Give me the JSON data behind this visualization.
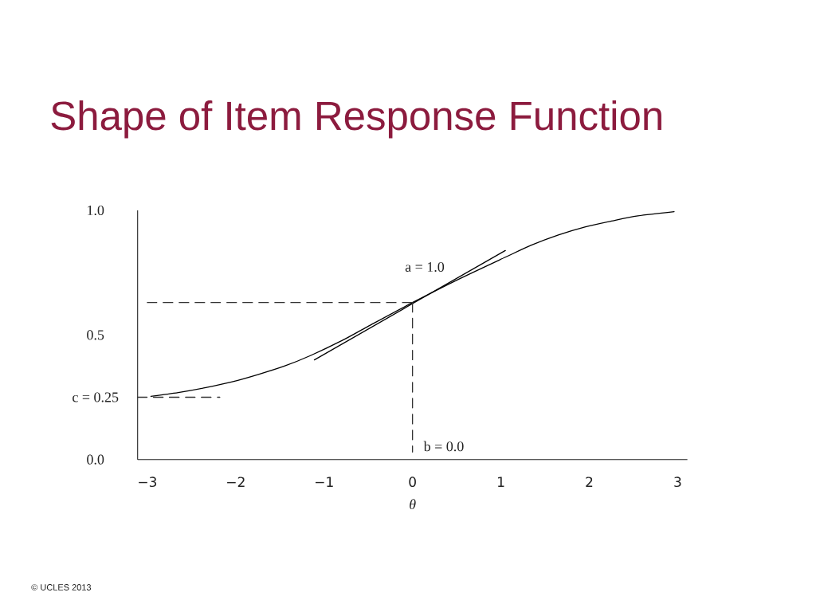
{
  "chart_data": {
    "type": "line",
    "title": "Shape of Item Response Function",
    "xlabel": "θ",
    "xlim": [
      -3.11,
      3.11
    ],
    "ylim": [
      0,
      1.0
    ],
    "xticks": [
      {
        "value": -3,
        "label": "−3"
      },
      {
        "value": -2,
        "label": "−2"
      },
      {
        "value": -1,
        "label": "−1"
      },
      0,
      1,
      2,
      3
    ],
    "yticks": [
      {
        "value": 0,
        "label": "0.0"
      },
      {
        "value": 0.25,
        "label": "c = 0.25"
      },
      {
        "value": 0.5,
        "label": "0.5"
      },
      {
        "value": 1,
        "label": "1.0"
      }
    ],
    "series": [
      {
        "color": "#000000",
        "line_style": "solid",
        "x": [
          -2.96,
          -2.65,
          -2.35,
          -2.05,
          -1.75,
          -1.45,
          -1.15,
          -0.79,
          -0.5,
          0,
          0.5,
          1.05,
          1.35,
          1.65,
          1.95,
          2.25,
          2.55,
          2.96
        ],
        "values": [
          0.254,
          0.269,
          0.288,
          0.311,
          0.341,
          0.375,
          0.418,
          0.479,
          0.535,
          0.63,
          0.72,
          0.812,
          0.861,
          0.901,
          0.933,
          0.957,
          0.978,
          0.995
        ]
      },
      {
        "color": "#000000",
        "line_style": "solid",
        "x": [
          -1.11,
          1.05
        ],
        "values": [
          0.4,
          0.839
        ]
      },
      {
        "color": "#333333",
        "line_style": "dashed",
        "x": [
          -3.0,
          0
        ],
        "values": [
          0.63,
          0.63
        ]
      },
      {
        "color": "#333333",
        "line_style": "dashed",
        "x": [
          0,
          0
        ],
        "values": [
          0.63,
          0.03
        ]
      },
      {
        "color": "#333333",
        "line_style": "dashed",
        "x": [
          -3.11,
          -2.18
        ],
        "values": [
          0.25,
          0.25
        ]
      }
    ],
    "annotations": [
      "a = 1.0",
      "b = 0.0",
      "© UCLES 2013"
    ]
  }
}
